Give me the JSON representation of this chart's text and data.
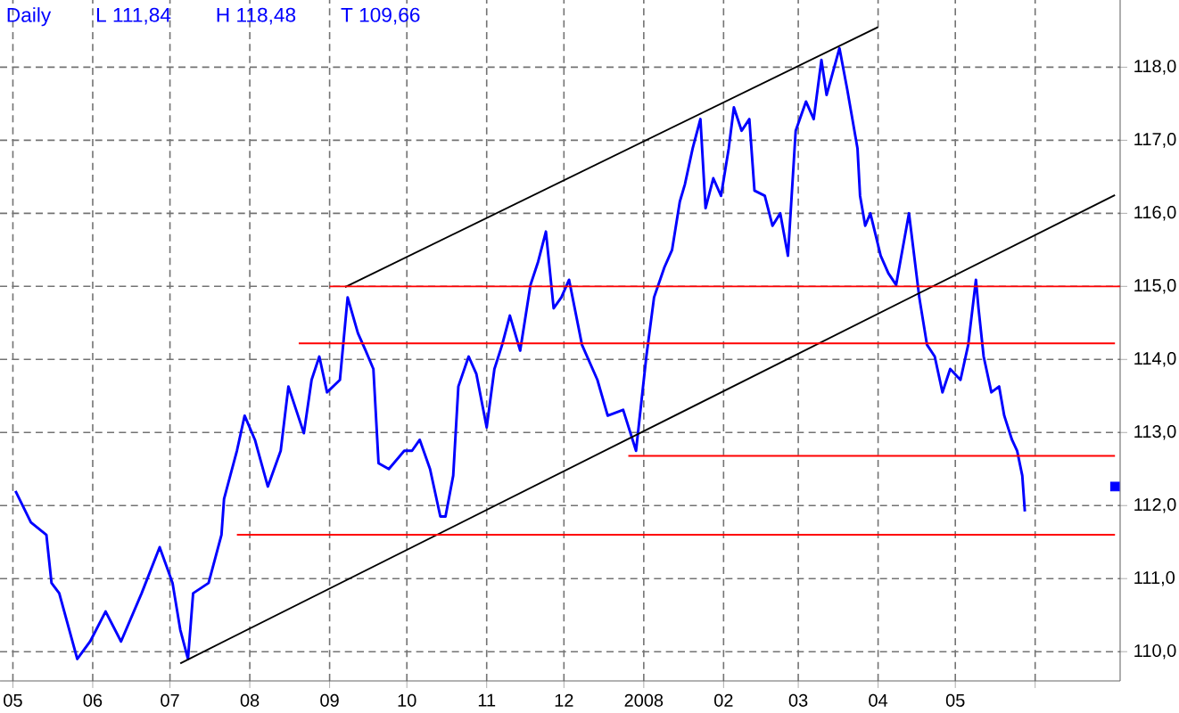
{
  "chart_data": {
    "type": "line",
    "title": "Daily",
    "annotations": [
      "L 111,84",
      "H 118,48",
      "T 109,66"
    ],
    "xlim": [
      "2007-04-26",
      "2008-07-04"
    ],
    "ylim": [
      109.6,
      118.92
    ],
    "xticks": [
      {
        "value": "2007-05-01",
        "label": "05"
      },
      {
        "value": "2007-06-01",
        "label": "06"
      },
      {
        "value": "2007-07-01",
        "label": "07"
      },
      {
        "value": "2007-08-01",
        "label": "08"
      },
      {
        "value": "2007-09-01",
        "label": "09"
      },
      {
        "value": "2007-10-01",
        "label": "10"
      },
      {
        "value": "2007-11-01",
        "label": "11"
      },
      {
        "value": "2007-12-01",
        "label": "12"
      },
      {
        "value": "2008-01-01",
        "label": "2008"
      },
      {
        "value": "2008-02-01",
        "label": "02"
      },
      {
        "value": "2008-03-01",
        "label": "03"
      },
      {
        "value": "2008-04-01",
        "label": "04"
      },
      {
        "value": "2008-05-01",
        "label": "05"
      },
      {
        "value": "2008-06-01",
        "label": null
      }
    ],
    "yticks": [
      {
        "value": 110,
        "label": "110,0"
      },
      {
        "value": 111,
        "label": "111,0"
      },
      {
        "value": 112,
        "label": "112,0"
      },
      {
        "value": 113,
        "label": "113,0"
      },
      {
        "value": 114,
        "label": "114,0"
      },
      {
        "value": 115,
        "label": "115,0"
      },
      {
        "value": 116,
        "label": "116,0"
      },
      {
        "value": 117,
        "label": "117,0"
      },
      {
        "value": 118,
        "label": "118,0"
      }
    ],
    "grid": true,
    "marker": "none",
    "line_style": "solid",
    "series": [
      {
        "color": "#0000ff",
        "x": [
          "2007-05-02",
          "2007-05-08",
          "2007-05-14",
          "2007-05-16",
          "2007-05-19",
          "2007-05-26",
          "2007-05-31",
          "2007-06-06",
          "2007-06-12",
          "2007-06-20",
          "2007-06-27",
          "2007-07-02",
          "2007-07-05",
          "2007-07-08",
          "2007-07-10",
          "2007-07-16",
          "2007-07-21",
          "2007-07-22",
          "2007-07-27",
          "2007-07-30",
          "2007-08-03",
          "2007-08-08",
          "2007-08-13",
          "2007-08-16",
          "2007-08-19",
          "2007-08-22",
          "2007-08-25",
          "2007-08-28",
          "2007-08-31",
          "2007-09-05",
          "2007-09-08",
          "2007-09-12",
          "2007-09-15",
          "2007-09-18",
          "2007-09-20",
          "2007-09-24",
          "2007-09-30",
          "2007-10-03",
          "2007-10-06",
          "2007-10-10",
          "2007-10-14",
          "2007-10-16",
          "2007-10-19",
          "2007-10-21",
          "2007-10-25",
          "2007-10-28",
          "2007-11-01",
          "2007-11-04",
          "2007-11-07",
          "2007-11-10",
          "2007-11-14",
          "2007-11-18",
          "2007-11-21",
          "2007-11-24",
          "2007-11-27",
          "2007-11-30",
          "2007-12-03",
          "2007-12-08",
          "2007-12-14",
          "2007-12-18",
          "2007-12-24",
          "2007-12-29",
          "2008-01-02",
          "2008-01-05",
          "2008-01-09",
          "2008-01-12",
          "2008-01-15",
          "2008-01-17",
          "2008-01-20",
          "2008-01-23",
          "2008-01-25",
          "2008-01-28",
          "2008-01-31",
          "2008-02-03",
          "2008-02-05",
          "2008-02-08",
          "2008-02-11",
          "2008-02-13",
          "2008-02-17",
          "2008-02-20",
          "2008-02-23",
          "2008-02-26",
          "2008-02-29",
          "2008-03-04",
          "2008-03-07",
          "2008-03-10",
          "2008-03-12",
          "2008-03-17",
          "2008-03-20",
          "2008-03-24",
          "2008-03-25",
          "2008-03-27",
          "2008-03-29",
          "2008-04-02",
          "2008-04-05",
          "2008-04-08",
          "2008-04-13",
          "2008-04-17",
          "2008-04-20",
          "2008-04-23",
          "2008-04-26",
          "2008-04-29",
          "2008-05-03",
          "2008-05-06",
          "2008-05-09",
          "2008-05-10",
          "2008-05-12",
          "2008-05-15",
          "2008-05-18",
          "2008-05-20",
          "2008-05-23",
          "2008-05-25",
          "2008-05-27",
          "2008-05-28"
        ],
        "values": [
          112.2,
          111.77,
          111.6,
          110.94,
          110.8,
          109.9,
          110.14,
          110.55,
          110.14,
          110.8,
          111.43,
          110.94,
          110.3,
          109.9,
          110.8,
          110.94,
          111.6,
          112.09,
          112.75,
          113.23,
          112.9,
          112.26,
          112.75,
          113.63,
          113.31,
          112.99,
          113.72,
          114.04,
          113.55,
          113.72,
          114.85,
          114.36,
          114.12,
          113.87,
          112.58,
          112.5,
          112.75,
          112.75,
          112.9,
          112.5,
          111.85,
          111.85,
          112.41,
          113.63,
          114.04,
          113.8,
          113.07,
          113.87,
          114.2,
          114.6,
          114.12,
          115.02,
          115.34,
          115.75,
          114.7,
          114.85,
          115.09,
          114.2,
          113.72,
          113.23,
          113.31,
          112.75,
          114.04,
          114.85,
          115.26,
          115.5,
          116.16,
          116.4,
          116.89,
          117.29,
          116.07,
          116.48,
          116.24,
          116.89,
          117.45,
          117.13,
          117.29,
          116.31,
          116.24,
          115.83,
          116.0,
          115.42,
          117.13,
          117.53,
          117.29,
          118.1,
          117.62,
          118.26,
          117.7,
          116.89,
          116.24,
          115.83,
          116.0,
          115.42,
          115.18,
          115.02,
          116.0,
          114.85,
          114.2,
          114.04,
          113.55,
          113.87,
          113.72,
          114.2,
          115.09,
          114.7,
          114.04,
          113.55,
          113.63,
          113.23,
          112.9,
          112.75,
          112.41,
          111.92
        ]
      },
      {
        "color": "#000000",
        "x": [
          "2007-07-05",
          "2008-07-02"
        ],
        "values": [
          109.84,
          116.25
        ]
      },
      {
        "color": "#000000",
        "x": [
          "2007-09-07",
          "2008-04-01"
        ],
        "values": [
          114.99,
          118.55
        ]
      },
      {
        "color": "#ff0000",
        "x": [
          "2007-09-01",
          "2008-07-04"
        ],
        "values": [
          115.0,
          115.0
        ]
      },
      {
        "color": "#ff0000",
        "x": [
          "2007-08-20",
          "2008-07-02"
        ],
        "values": [
          114.22,
          114.22
        ]
      },
      {
        "color": "#ff0000",
        "x": [
          "2007-12-26",
          "2008-07-02"
        ],
        "values": [
          112.68,
          112.68
        ]
      },
      {
        "color": "#ff0000",
        "x": [
          "2007-07-27",
          "2008-07-02"
        ],
        "values": [
          111.6,
          111.6
        ]
      },
      {
        "type": "scatter",
        "marker": "square",
        "color": "#0000ff",
        "x": [
          "2008-07-02"
        ],
        "values": [
          112.26
        ]
      }
    ]
  }
}
